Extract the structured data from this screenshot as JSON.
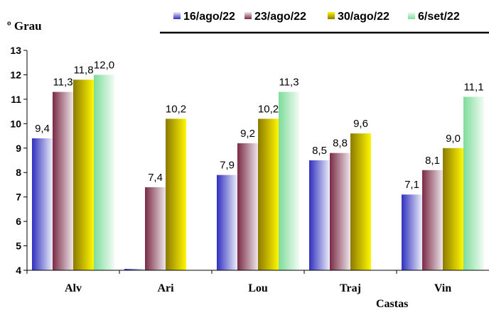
{
  "chart_data": {
    "type": "bar",
    "ylabel": "º Grau",
    "xlabel": "Castas",
    "categories": [
      "Alv",
      "Ari",
      "Lou",
      "Traj",
      "Vin"
    ],
    "ylim": [
      4,
      13
    ],
    "yticks": [
      4,
      5,
      6,
      7,
      8,
      9,
      10,
      11,
      12,
      13
    ],
    "legend_position": "top-right",
    "series": [
      {
        "name": "16/ago/22",
        "values": [
          9.4,
          4.0,
          7.9,
          8.5,
          7.1
        ],
        "labels": [
          "9,4",
          "",
          "7,9",
          "8,5",
          "7,1"
        ],
        "color_dark": "#3030c0",
        "color_light": "#ecedf8"
      },
      {
        "name": "23/ago/22",
        "values": [
          11.3,
          7.4,
          9.2,
          8.8,
          8.1
        ],
        "labels": [
          "11,3",
          "7,4",
          "9,2",
          "8,8",
          "8,1"
        ],
        "color_dark": "#7a2a45",
        "color_light": "#ede6ea"
      },
      {
        "name": "30/ago/22",
        "values": [
          11.8,
          10.2,
          10.2,
          9.6,
          9.0
        ],
        "labels": [
          "11,8",
          "10,2",
          "10,2",
          "9,6",
          "9,0"
        ],
        "color_dark": "#8c7a00",
        "color_light": "#fff700"
      },
      {
        "name": "6/set/22",
        "values": [
          12.0,
          null,
          11.3,
          null,
          11.1
        ],
        "labels": [
          "12,0",
          "",
          "11,3",
          "",
          "11,1"
        ],
        "color_dark": "#7ddc9a",
        "color_light": "#f2fbf4"
      }
    ]
  }
}
